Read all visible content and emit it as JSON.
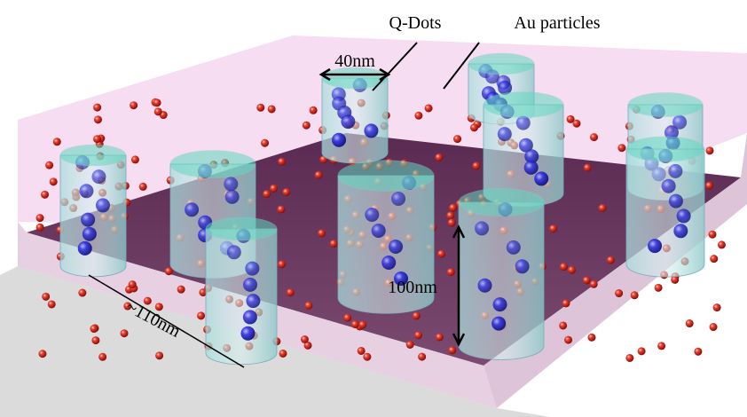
{
  "labels": {
    "qdots": "Q-Dots",
    "au": "Au particles",
    "diameter": "40nm",
    "height": "100nm",
    "spacing": "~110nm"
  }
}
